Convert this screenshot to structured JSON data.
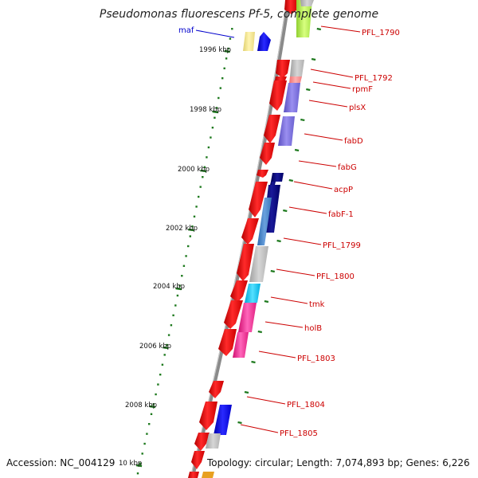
{
  "title": "Pseudomonas fluorescens Pf-5, complete genome",
  "footer": {
    "accession": "Accession: NC_004129",
    "topology": "Topology: circular; Length: 7,074,893 bp; Genes: 6,226"
  },
  "colors": {
    "backbone": "#888888",
    "tick": "#1f7a1f",
    "label_red": "#cc0000",
    "label_blue": "#0000cc",
    "gene_red": "#ff0000"
  },
  "scale_ticks": [
    "1996 kbp",
    "1998 kbp",
    "2000 kbp",
    "2002 kbp",
    "2004 kbp",
    "2006 kbp",
    "2008 kbp",
    "10 kbp"
  ],
  "gene_labels": [
    {
      "text": "maf",
      "color": "blue"
    },
    {
      "text": "PFL_1790",
      "color": "red"
    },
    {
      "text": "PFL_1792",
      "color": "red"
    },
    {
      "text": "rpmF",
      "color": "red"
    },
    {
      "text": "plsX",
      "color": "red"
    },
    {
      "text": "fabD",
      "color": "red"
    },
    {
      "text": "fabG",
      "color": "red"
    },
    {
      "text": "acpP",
      "color": "red"
    },
    {
      "text": "fabF-1",
      "color": "red"
    },
    {
      "text": "PFL_1799",
      "color": "red"
    },
    {
      "text": "PFL_1800",
      "color": "red"
    },
    {
      "text": "tmk",
      "color": "red"
    },
    {
      "text": "holB",
      "color": "red"
    },
    {
      "text": "PFL_1803",
      "color": "red"
    },
    {
      "text": "PFL_1804",
      "color": "red"
    },
    {
      "text": "PFL_1805",
      "color": "red"
    }
  ]
}
